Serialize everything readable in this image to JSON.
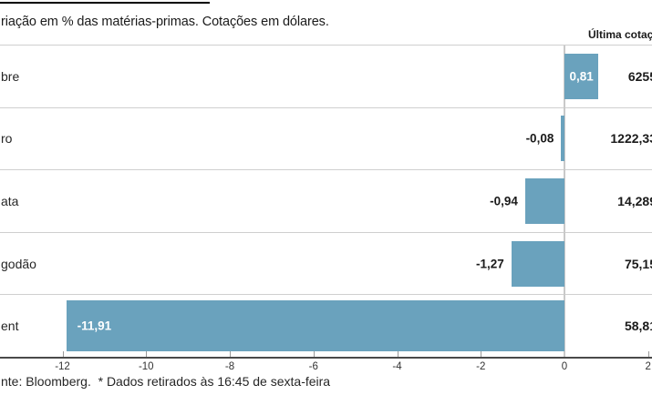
{
  "title": "riação em % das matérias-primas. Cotações em dólares.",
  "column_header": "Última cotaç",
  "footer": "nte: Bloomberg.  * Dados retirados às 16:45 de sexta-feira",
  "rows": [
    {
      "label": "bre",
      "variation": "0,81",
      "last_quote": "6255"
    },
    {
      "label": "ro",
      "variation": "-0,08",
      "last_quote": "1222,33"
    },
    {
      "label": "ata",
      "variation": "-0,94",
      "last_quote": "14,289"
    },
    {
      "label": "godão",
      "variation": "-1,27",
      "last_quote": "75,15"
    },
    {
      "label": "ent",
      "variation": "-11,91",
      "last_quote": "58,81"
    }
  ],
  "chart_data": {
    "type": "bar",
    "orientation": "horizontal",
    "title": "riação em % das matérias-primas. Cotações em dólares.",
    "categories": [
      "bre",
      "ro",
      "ata",
      "godão",
      "ent"
    ],
    "values": [
      0.81,
      -0.08,
      -0.94,
      -1.27,
      -11.91
    ],
    "value_labels": [
      "0,81",
      "-0,08",
      "-0,94",
      "-1,27",
      "-11,91"
    ],
    "last_quotes": [
      "6255",
      "1222,33",
      "14,289",
      "75,15",
      "58,81"
    ],
    "last_quote_header": "Última cotaç",
    "x_ticks": [
      -12,
      -10,
      -8,
      -6,
      -4,
      -2,
      0,
      2
    ],
    "xlim": [
      -13.5,
      2.1
    ],
    "label_inside": [
      true,
      false,
      false,
      false,
      true
    ],
    "grid": false,
    "bar_color": "#6aa2bd",
    "source_note": "nte: Bloomberg.  * Dados retirados às 16:45 de sexta-feira"
  },
  "colors": {
    "bar": "#6aa2bd",
    "bar_label_inside": "#ffffff",
    "separator": "#cfcfcf",
    "axis": "#4a4a4a",
    "text": "#1a1a1a"
  }
}
